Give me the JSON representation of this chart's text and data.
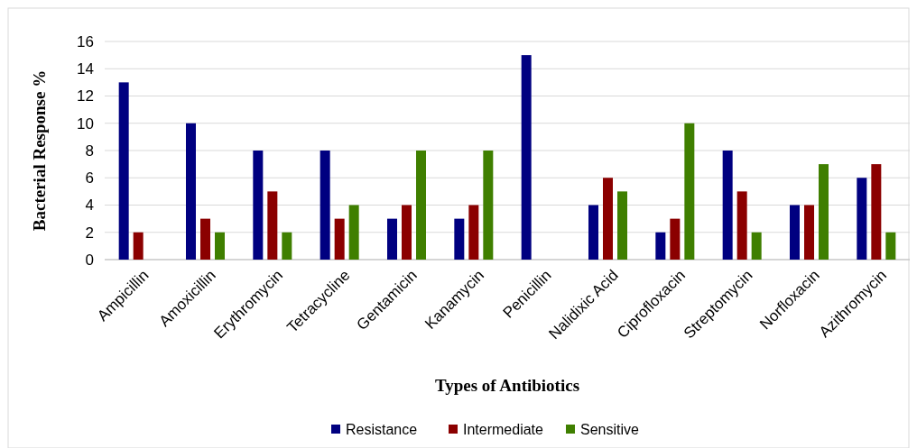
{
  "chart_data": {
    "type": "bar",
    "xlabel": "Types of Antibiotics",
    "ylabel": "Bacterial Response %",
    "categories": [
      "Ampicillin",
      "Amoxicillin",
      "Erythromycin",
      "Tetracycline",
      "Gentamicin",
      "Kanamycin",
      "Penicillin",
      "Nalidixic Acid",
      "Ciprofloxacin",
      "Streptomycin",
      "Norfloxacin",
      "Azithromycin"
    ],
    "series": [
      {
        "name": "Resistance",
        "color": "#000080",
        "values": [
          13,
          10,
          8,
          8,
          3,
          3,
          15,
          4,
          2,
          8,
          4,
          6
        ]
      },
      {
        "name": "Intermediate",
        "color": "#8b0000",
        "values": [
          2,
          3,
          5,
          3,
          4,
          4,
          0,
          6,
          3,
          5,
          4,
          7
        ]
      },
      {
        "name": "Sensitive",
        "color": "#3f7f00",
        "values": [
          0,
          2,
          2,
          4,
          8,
          8,
          0,
          5,
          10,
          2,
          7,
          2
        ]
      }
    ],
    "ylim": [
      0,
      16
    ],
    "yticks": [
      0,
      2,
      4,
      6,
      8,
      10,
      12,
      14,
      16
    ],
    "grid": "y",
    "legend": "bottom"
  }
}
